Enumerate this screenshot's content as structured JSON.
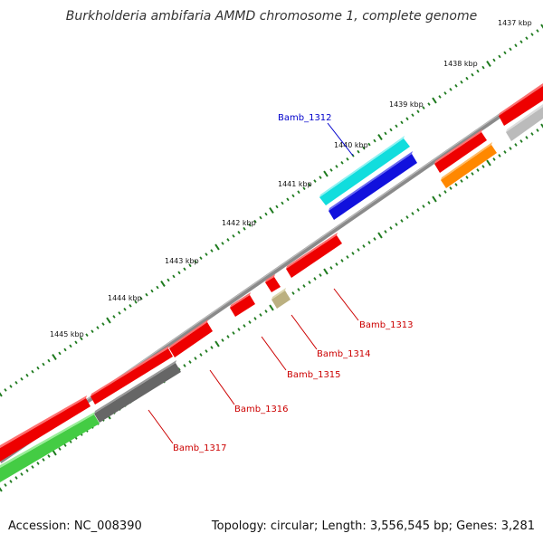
{
  "title": "Burkholderia ambifaria AMMD chromosome 1, complete genome",
  "footer": {
    "accession": "Accession: NC_008390",
    "summary": "Topology: circular; Length: 3,556,545 bp; Genes: 3,281"
  },
  "scale_labels": [
    "1437 kbp",
    "1438 kbp",
    "1439 kbp",
    "1440 kbp",
    "1441 kbp",
    "1442 kbp",
    "1443 kbp",
    "1444 kbp",
    "1445 kbp"
  ],
  "gene_labels": [
    {
      "name": "Bamb_1312",
      "color": "#0000cc"
    },
    {
      "name": "Bamb_1313",
      "color": "#cc0000"
    },
    {
      "name": "Bamb_1314",
      "color": "#cc0000"
    },
    {
      "name": "Bamb_1315",
      "color": "#cc0000"
    },
    {
      "name": "Bamb_1316",
      "color": "#cc0000"
    },
    {
      "name": "Bamb_1317",
      "color": "#cc0000"
    }
  ],
  "colors": {
    "backbone": "#8a8a8a",
    "tick": "#1e7a1e",
    "red": "#ee0000",
    "cyan": "#11dddd",
    "blue": "#1111dd",
    "orange": "#ff8800",
    "green": "#44cc44",
    "dark_gray": "#666666",
    "light_gray": "#bbbbbb",
    "khaki": "#bbb080"
  }
}
